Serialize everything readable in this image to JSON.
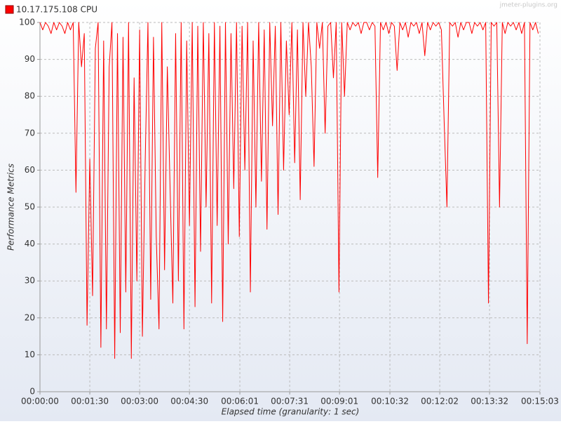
{
  "chart_data": {
    "type": "line",
    "watermark": "jmeter-plugins.org",
    "x_label": "Elapsed time (granularity: 1 sec)",
    "y_label": "Performance Metrics",
    "xlim": [
      0,
      903
    ],
    "ylim": [
      0,
      100
    ],
    "xticks": [
      {
        "value": 0,
        "label": "00:00:00"
      },
      {
        "value": 90,
        "label": "00:01:30"
      },
      {
        "value": 180,
        "label": "00:03:00"
      },
      {
        "value": 270,
        "label": "00:04:30"
      },
      {
        "value": 361,
        "label": "00:06:01"
      },
      {
        "value": 451,
        "label": "00:07:31"
      },
      {
        "value": 541,
        "label": "00:09:01"
      },
      {
        "value": 632,
        "label": "00:10:32"
      },
      {
        "value": 722,
        "label": "00:12:02"
      },
      {
        "value": 812,
        "label": "00:13:32"
      },
      {
        "value": 903,
        "label": "00:15:03"
      }
    ],
    "yticks": [
      0,
      10,
      20,
      30,
      40,
      50,
      60,
      70,
      80,
      90,
      100
    ],
    "grid": true,
    "legend": "top-left",
    "x": [
      0,
      5,
      10,
      15,
      20,
      25,
      30,
      35,
      40,
      45,
      50,
      55,
      60,
      65,
      70,
      75,
      80,
      85,
      90,
      95,
      100,
      105,
      110,
      115,
      120,
      125,
      130,
      135,
      140,
      145,
      150,
      155,
      160,
      165,
      170,
      175,
      180,
      185,
      190,
      195,
      200,
      205,
      210,
      215,
      220,
      225,
      230,
      235,
      240,
      245,
      250,
      255,
      260,
      265,
      270,
      275,
      280,
      285,
      290,
      295,
      300,
      305,
      310,
      315,
      320,
      325,
      330,
      335,
      340,
      345,
      350,
      355,
      360,
      365,
      370,
      375,
      380,
      385,
      390,
      395,
      400,
      405,
      410,
      415,
      420,
      425,
      430,
      435,
      440,
      445,
      450,
      455,
      460,
      465,
      470,
      475,
      480,
      485,
      490,
      495,
      500,
      505,
      510,
      515,
      520,
      525,
      530,
      535,
      540,
      545,
      550,
      555,
      560,
      565,
      570,
      575,
      580,
      585,
      590,
      595,
      600,
      605,
      610,
      615,
      620,
      625,
      630,
      635,
      640,
      645,
      650,
      655,
      660,
      665,
      670,
      675,
      680,
      685,
      690,
      695,
      700,
      705,
      710,
      715,
      720,
      725,
      730,
      735,
      740,
      745,
      750,
      755,
      760,
      765,
      770,
      775,
      780,
      785,
      790,
      795,
      800,
      805,
      810,
      815,
      820,
      825,
      830,
      835,
      840,
      845,
      850,
      855,
      860,
      865,
      870,
      875,
      880,
      885,
      890,
      895,
      900
    ],
    "series": [
      {
        "name": "10.17.175.108 CPU",
        "color": "#ff0000",
        "values": [
          100,
          98,
          100,
          99,
          97,
          100,
          98,
          100,
          99,
          97,
          100,
          98,
          100,
          54,
          100,
          88,
          97,
          18,
          63,
          26,
          93,
          100,
          12,
          95,
          17,
          88,
          100,
          9,
          97,
          16,
          96,
          27,
          100,
          9,
          85,
          30,
          98,
          15,
          62,
          100,
          25,
          96,
          42,
          17,
          100,
          33,
          88,
          55,
          24,
          97,
          30,
          100,
          17,
          95,
          45,
          100,
          23,
          99,
          38,
          100,
          50,
          97,
          24,
          100,
          45,
          99,
          19,
          100,
          40,
          97,
          55,
          100,
          42,
          99,
          60,
          100,
          27,
          95,
          50,
          100,
          57,
          98,
          44,
          100,
          72,
          99,
          48,
          100,
          60,
          95,
          75,
          100,
          62,
          98,
          52,
          100,
          80,
          100,
          88,
          61,
          100,
          93,
          100,
          70,
          99,
          100,
          85,
          100,
          27,
          100,
          80,
          100,
          98,
          100,
          99,
          100,
          97,
          100,
          100,
          98,
          100,
          99,
          58,
          100,
          98,
          100,
          97,
          100,
          99,
          87,
          100,
          98,
          100,
          96,
          100,
          99,
          100,
          97,
          100,
          91,
          100,
          98,
          100,
          99,
          100,
          98,
          73,
          50,
          100,
          99,
          100,
          96,
          100,
          98,
          100,
          100,
          97,
          100,
          99,
          100,
          98,
          100,
          24,
          100,
          99,
          100,
          50,
          100,
          97,
          100,
          99,
          100,
          98,
          100,
          97,
          100,
          13,
          100,
          98,
          100,
          97
        ]
      }
    ]
  }
}
